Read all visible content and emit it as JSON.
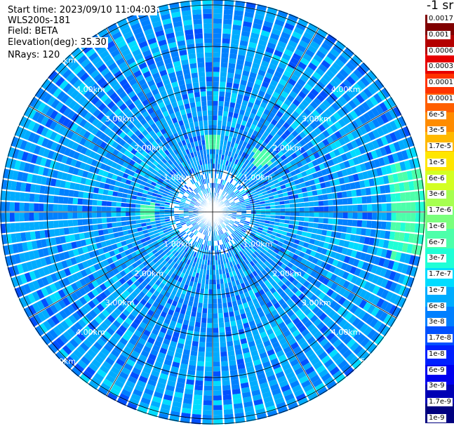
{
  "info": {
    "start_time": "Start time: 2023/09/10 11:04:03",
    "device": "WLS200s-181",
    "field": "Field: BETA",
    "elevation": "Elevation(deg): 35.30",
    "nrays": "NRays: 120"
  },
  "chart_data": {
    "type": "heatmap",
    "projection": "polar (PPI scan)",
    "field": "BETA",
    "elevation_deg": 35.3,
    "n_rays": 120,
    "unit": "-1 sr",
    "range_rings_km": [
      1.0,
      2.0,
      3.0,
      4.0,
      5.0
    ],
    "range_labels": [
      "1.00km",
      "2.00km",
      "3.00km",
      "4.00km",
      "5.00km"
    ],
    "colorbar": {
      "ticks": [
        "1e-9",
        "1.7e-9",
        "3e-9",
        "6e-9",
        "1e-8",
        "1.7e-8",
        "3e-8",
        "6e-8",
        "1e-7",
        "1.7e-7",
        "3e-7",
        "6e-7",
        "1e-6",
        "1.7e-6",
        "3e-6",
        "6e-6",
        "1e-5",
        "1.7e-5",
        "3e-5",
        "6e-5",
        "0.0001",
        "0.00017",
        "0.0003",
        "0.0006",
        "0.001",
        "0.0017"
      ],
      "colors": [
        "#00007f",
        "#0000b4",
        "#0000ee",
        "#0020ff",
        "#0050ff",
        "#0080ff",
        "#00acff",
        "#00dcff",
        "#20ffd6",
        "#4dffaa",
        "#7aff7d",
        "#a6ff50",
        "#d3ff23",
        "#ffe600",
        "#ffb900",
        "#ff8c00",
        "#ff5f00",
        "#ff3300",
        "#e70000",
        "#b40000",
        "#800000"
      ]
    },
    "dominant_value_range": [
      "1e-8",
      "1e-7"
    ],
    "notable_features": [
      "near-uniform blue/cyan echo across the full 5 km scan",
      "cyan-green patch on the east edge near 5 km",
      "small green patches near 1-2 km north and west",
      "white sparse bins near centre (no data)"
    ]
  },
  "colors": {
    "background": "#ffffff",
    "grid": "#000000",
    "range_label": "#ffffff"
  }
}
